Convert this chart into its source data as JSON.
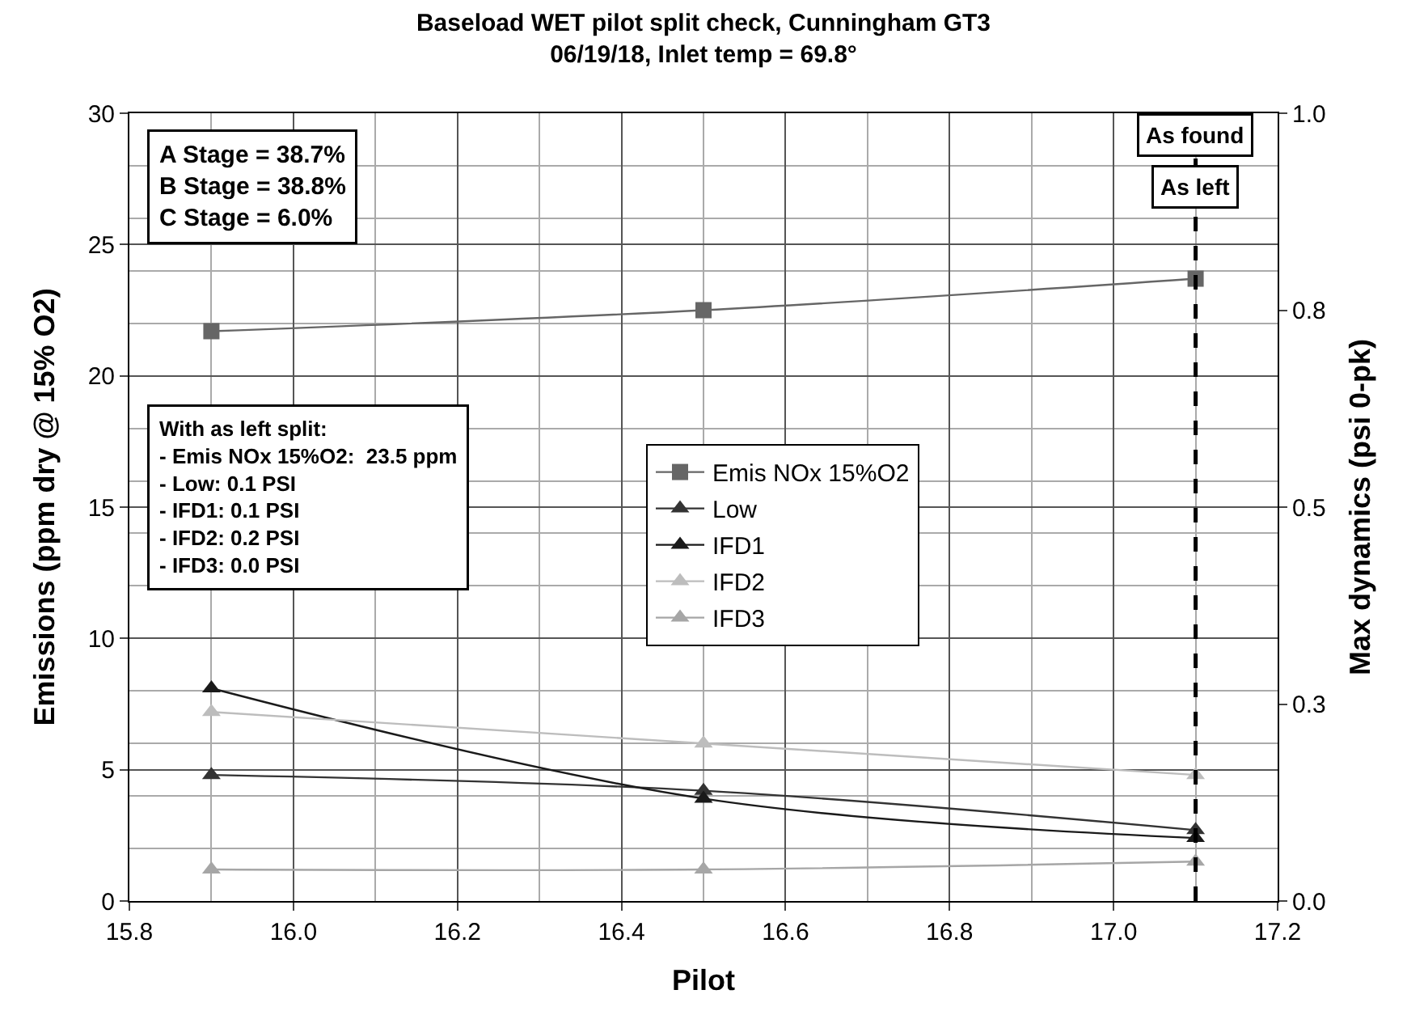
{
  "chart_data": {
    "type": "line",
    "title": "Baseload WET pilot split check, Cunningham GT3",
    "subtitle": "06/19/18, Inlet temp = 69.8°",
    "xlabel": "Pilot",
    "ylabel": "Emissions (ppm dry @ 15% O2)",
    "y2label": "Max dynamics (psi 0-pk)",
    "x": [
      15.9,
      16.5,
      17.1
    ],
    "series": [
      {
        "name": "Emis NOx 15%O2",
        "color": "#666666",
        "marker": "square",
        "values": [
          21.7,
          22.5,
          23.7
        ]
      },
      {
        "name": "Low",
        "color": "#333333",
        "marker": "triangle",
        "axis": "y2",
        "values": [
          0.16,
          0.14,
          0.09
        ]
      },
      {
        "name": "IFD1",
        "color": "#1a1a1a",
        "marker": "triangle",
        "axis": "y2",
        "values": [
          0.27,
          0.13,
          0.08
        ]
      },
      {
        "name": "IFD2",
        "color": "#bdbdbd",
        "marker": "triangle",
        "axis": "y2",
        "values": [
          0.24,
          0.2,
          0.16
        ]
      },
      {
        "name": "IFD3",
        "color": "#a6a6a6",
        "marker": "triangle",
        "axis": "y2",
        "values": [
          0.04,
          0.04,
          0.05
        ]
      }
    ],
    "xlim": [
      15.8,
      17.2
    ],
    "xticks": [
      15.8,
      {
        "value": 16,
        "label": "16.0"
      },
      16.2,
      16.4,
      16.6,
      16.8,
      {
        "value": 17,
        "label": "17.0"
      },
      17.2
    ],
    "ylim": [
      0,
      30
    ],
    "yticks": [
      0,
      5,
      10,
      15,
      20,
      25,
      30
    ],
    "y2lim": [
      0,
      1
    ],
    "y2ticks": [
      {
        "value": 0,
        "label": "0.0"
      },
      {
        "value": 0.25,
        "label": "0.3"
      },
      0.5,
      {
        "value": 0.75,
        "label": "0.8"
      },
      {
        "value": 1,
        "label": "1.0"
      }
    ],
    "ref_lines": [
      {
        "axis": "x",
        "value": 17.1,
        "label": "As found",
        "color": "#000000",
        "line_style": "dashed"
      }
    ],
    "annotations": [
      {
        "text": "As left",
        "x": 17.1
      },
      "A Stage = 38.7%\nB Stage = 38.8%\nC Stage = 6.0%",
      "With as left split:\n- Emis NOx 15%O2:  23.5 ppm\n- Low: 0.1 PSI\n- IFD1: 0.1 PSI\n- IFD2: 0.2 PSI\n- IFD3: 0.0 PSI"
    ],
    "grid": true,
    "legend": "center"
  }
}
